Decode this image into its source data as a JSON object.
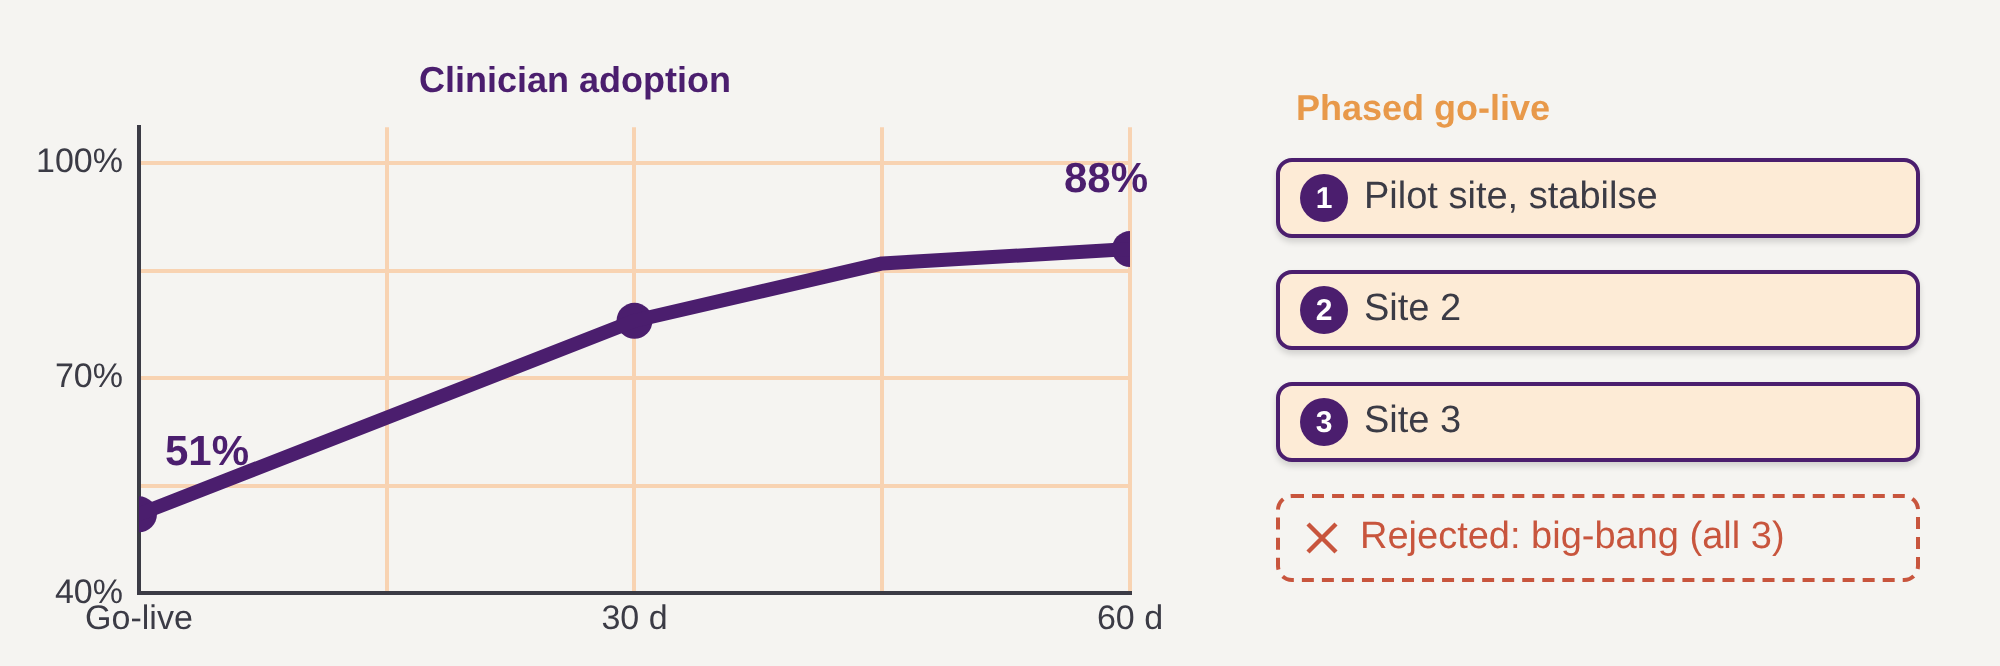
{
  "chart_data": [
    {
      "type": "line",
      "title": "Clinician adoption",
      "xlim": [
        0,
        60
      ],
      "xticks": [
        {
          "value": 0,
          "label": "Go-live"
        },
        {
          "value": 15,
          "label": null
        },
        {
          "value": 30,
          "label": "30 d"
        },
        {
          "value": 45,
          "label": null
        },
        {
          "value": 60,
          "label": "60 d"
        }
      ],
      "ylim": [
        40,
        105
      ],
      "yticks": [
        {
          "value": 40,
          "label": "40%"
        },
        {
          "value": 55,
          "label": null
        },
        {
          "value": 70,
          "label": "70%"
        },
        {
          "value": 85,
          "label": null
        },
        {
          "value": 100,
          "label": "100%"
        }
      ],
      "grid": true,
      "legend": false,
      "series": [
        {
          "type": "line",
          "color": "#4b1e6e",
          "x": [
            0,
            30,
            45,
            60
          ],
          "values": [
            51,
            78,
            86,
            88
          ],
          "marker": "none"
        },
        {
          "type": "scatter",
          "color": "#4b1e6e",
          "x": [
            0,
            30,
            60
          ],
          "values": [
            51,
            78,
            88
          ],
          "marker": "circle",
          "value_labels": [
            "51%",
            null,
            "88%"
          ]
        }
      ]
    },
    {
      "type": "other",
      "title": "Phased go-live",
      "categories": [
        "Pilot site, stabilse",
        "Site 2",
        "Site 3"
      ],
      "values": [
        1,
        2,
        3
      ],
      "data_labels": true,
      "annotations": [
        "Rejected: big-bang (all 3)"
      ]
    }
  ]
}
